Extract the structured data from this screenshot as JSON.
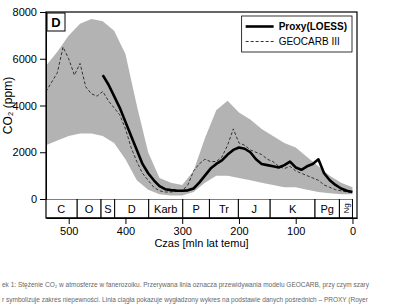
{
  "chart_data": {
    "type": "line",
    "panel_label": "D",
    "x_label": "Czas [mln lat temu]",
    "y_label": "CO₂ (ppm)",
    "xlim": [
      540,
      -8
    ],
    "ylim": [
      0,
      8000
    ],
    "xticks": [
      500,
      400,
      300,
      200,
      100,
      0
    ],
    "yticks": [
      0,
      2000,
      4000,
      6000,
      8000
    ],
    "legend": "top-right",
    "series": [
      {
        "type": "area",
        "color": "#b3b3b3",
        "x": [
          540,
          520,
          500,
          480,
          460,
          440,
          420,
          400,
          380,
          360,
          340,
          320,
          300,
          280,
          260,
          240,
          220,
          200,
          180,
          160,
          140,
          120,
          100,
          80,
          60,
          40,
          20,
          0
        ],
        "values": [
          5700,
          6300,
          7000,
          7500,
          7700,
          7600,
          7200,
          6200,
          4000,
          2000,
          900,
          700,
          600,
          1200,
          2600,
          3800,
          4200,
          3700,
          3400,
          3000,
          2700,
          2400,
          2200,
          1800,
          1400,
          1000,
          700,
          500
        ],
        "lower": [
          2300,
          2500,
          2700,
          2800,
          2800,
          2700,
          2400,
          1700,
          800,
          400,
          200,
          150,
          150,
          300,
          700,
          1000,
          1000,
          900,
          800,
          700,
          600,
          500,
          500,
          400,
          300,
          250,
          200,
          200
        ]
      },
      {
        "name": "GEOCARB III",
        "type": "line",
        "color": "#333333",
        "line_style": "dashed",
        "x": [
          540,
          530,
          520,
          510,
          500,
          490,
          480,
          470,
          460,
          450,
          440,
          430,
          420,
          410,
          400,
          390,
          380,
          370,
          360,
          350,
          340,
          330,
          320,
          310,
          300,
          290,
          280,
          270,
          260,
          250,
          240,
          230,
          220,
          210,
          200,
          190,
          180,
          170,
          160,
          150,
          140,
          130,
          120,
          110,
          100,
          90,
          80,
          70,
          60,
          50,
          40,
          30,
          20,
          10,
          0
        ],
        "values": [
          4600,
          5000,
          5400,
          6500,
          6000,
          5300,
          5800,
          4800,
          4500,
          4400,
          4600,
          4200,
          3900,
          3600,
          3000,
          2200,
          1600,
          1100,
          800,
          500,
          350,
          300,
          300,
          320,
          350,
          600,
          1200,
          1500,
          1700,
          1600,
          1600,
          1800,
          2300,
          3000,
          2400,
          2300,
          2100,
          2000,
          1900,
          1700,
          1600,
          1400,
          1300,
          1400,
          1200,
          1100,
          1000,
          900,
          800,
          600,
          500,
          400,
          350,
          300,
          280
        ]
      },
      {
        "name": "Proxy(LOESS)",
        "type": "line",
        "color": "#000000",
        "line_style": "solid",
        "x": [
          440,
          430,
          420,
          410,
          400,
          390,
          380,
          370,
          360,
          350,
          340,
          330,
          320,
          310,
          300,
          290,
          280,
          270,
          260,
          250,
          240,
          230,
          220,
          210,
          200,
          190,
          180,
          170,
          160,
          150,
          140,
          130,
          120,
          110,
          100,
          90,
          80,
          70,
          60,
          50,
          40,
          30,
          20,
          10,
          0
        ],
        "values": [
          5300,
          4900,
          4400,
          3900,
          3300,
          2700,
          2100,
          1500,
          1100,
          800,
          550,
          420,
          380,
          360,
          350,
          370,
          450,
          700,
          1000,
          1300,
          1500,
          1650,
          1900,
          2100,
          2200,
          2150,
          2000,
          1700,
          1500,
          1450,
          1400,
          1350,
          1450,
          1600,
          1350,
          1250,
          1400,
          1500,
          1700,
          1100,
          800,
          600,
          450,
          350,
          300
        ]
      }
    ],
    "periods": [
      {
        "label": "C",
        "start": 541,
        "end": 485
      },
      {
        "label": "O",
        "start": 485,
        "end": 443
      },
      {
        "label": "S",
        "start": 443,
        "end": 419
      },
      {
        "label": "D",
        "start": 419,
        "end": 359
      },
      {
        "label": "Karb",
        "start": 359,
        "end": 299
      },
      {
        "label": "P",
        "start": 299,
        "end": 252
      },
      {
        "label": "Tr",
        "start": 252,
        "end": 201
      },
      {
        "label": "J",
        "start": 201,
        "end": 145
      },
      {
        "label": "K",
        "start": 145,
        "end": 66
      },
      {
        "label": "Pg",
        "start": 66,
        "end": 23
      },
      {
        "label": "Ng",
        "start": 23,
        "end": 0
      }
    ],
    "caption": [
      "ek 1: Stężenie CO₂ w atmosferze w fanerozoiku. Przerywana linia oznacza przewidywania modelu GEOCARB, przy czym szary",
      "r symbolizuje zakres niepewności. Linia ciągła pokazuje wygładzony wykres na podstawie danych pośrednich – PROXY (Royer"
    ]
  }
}
